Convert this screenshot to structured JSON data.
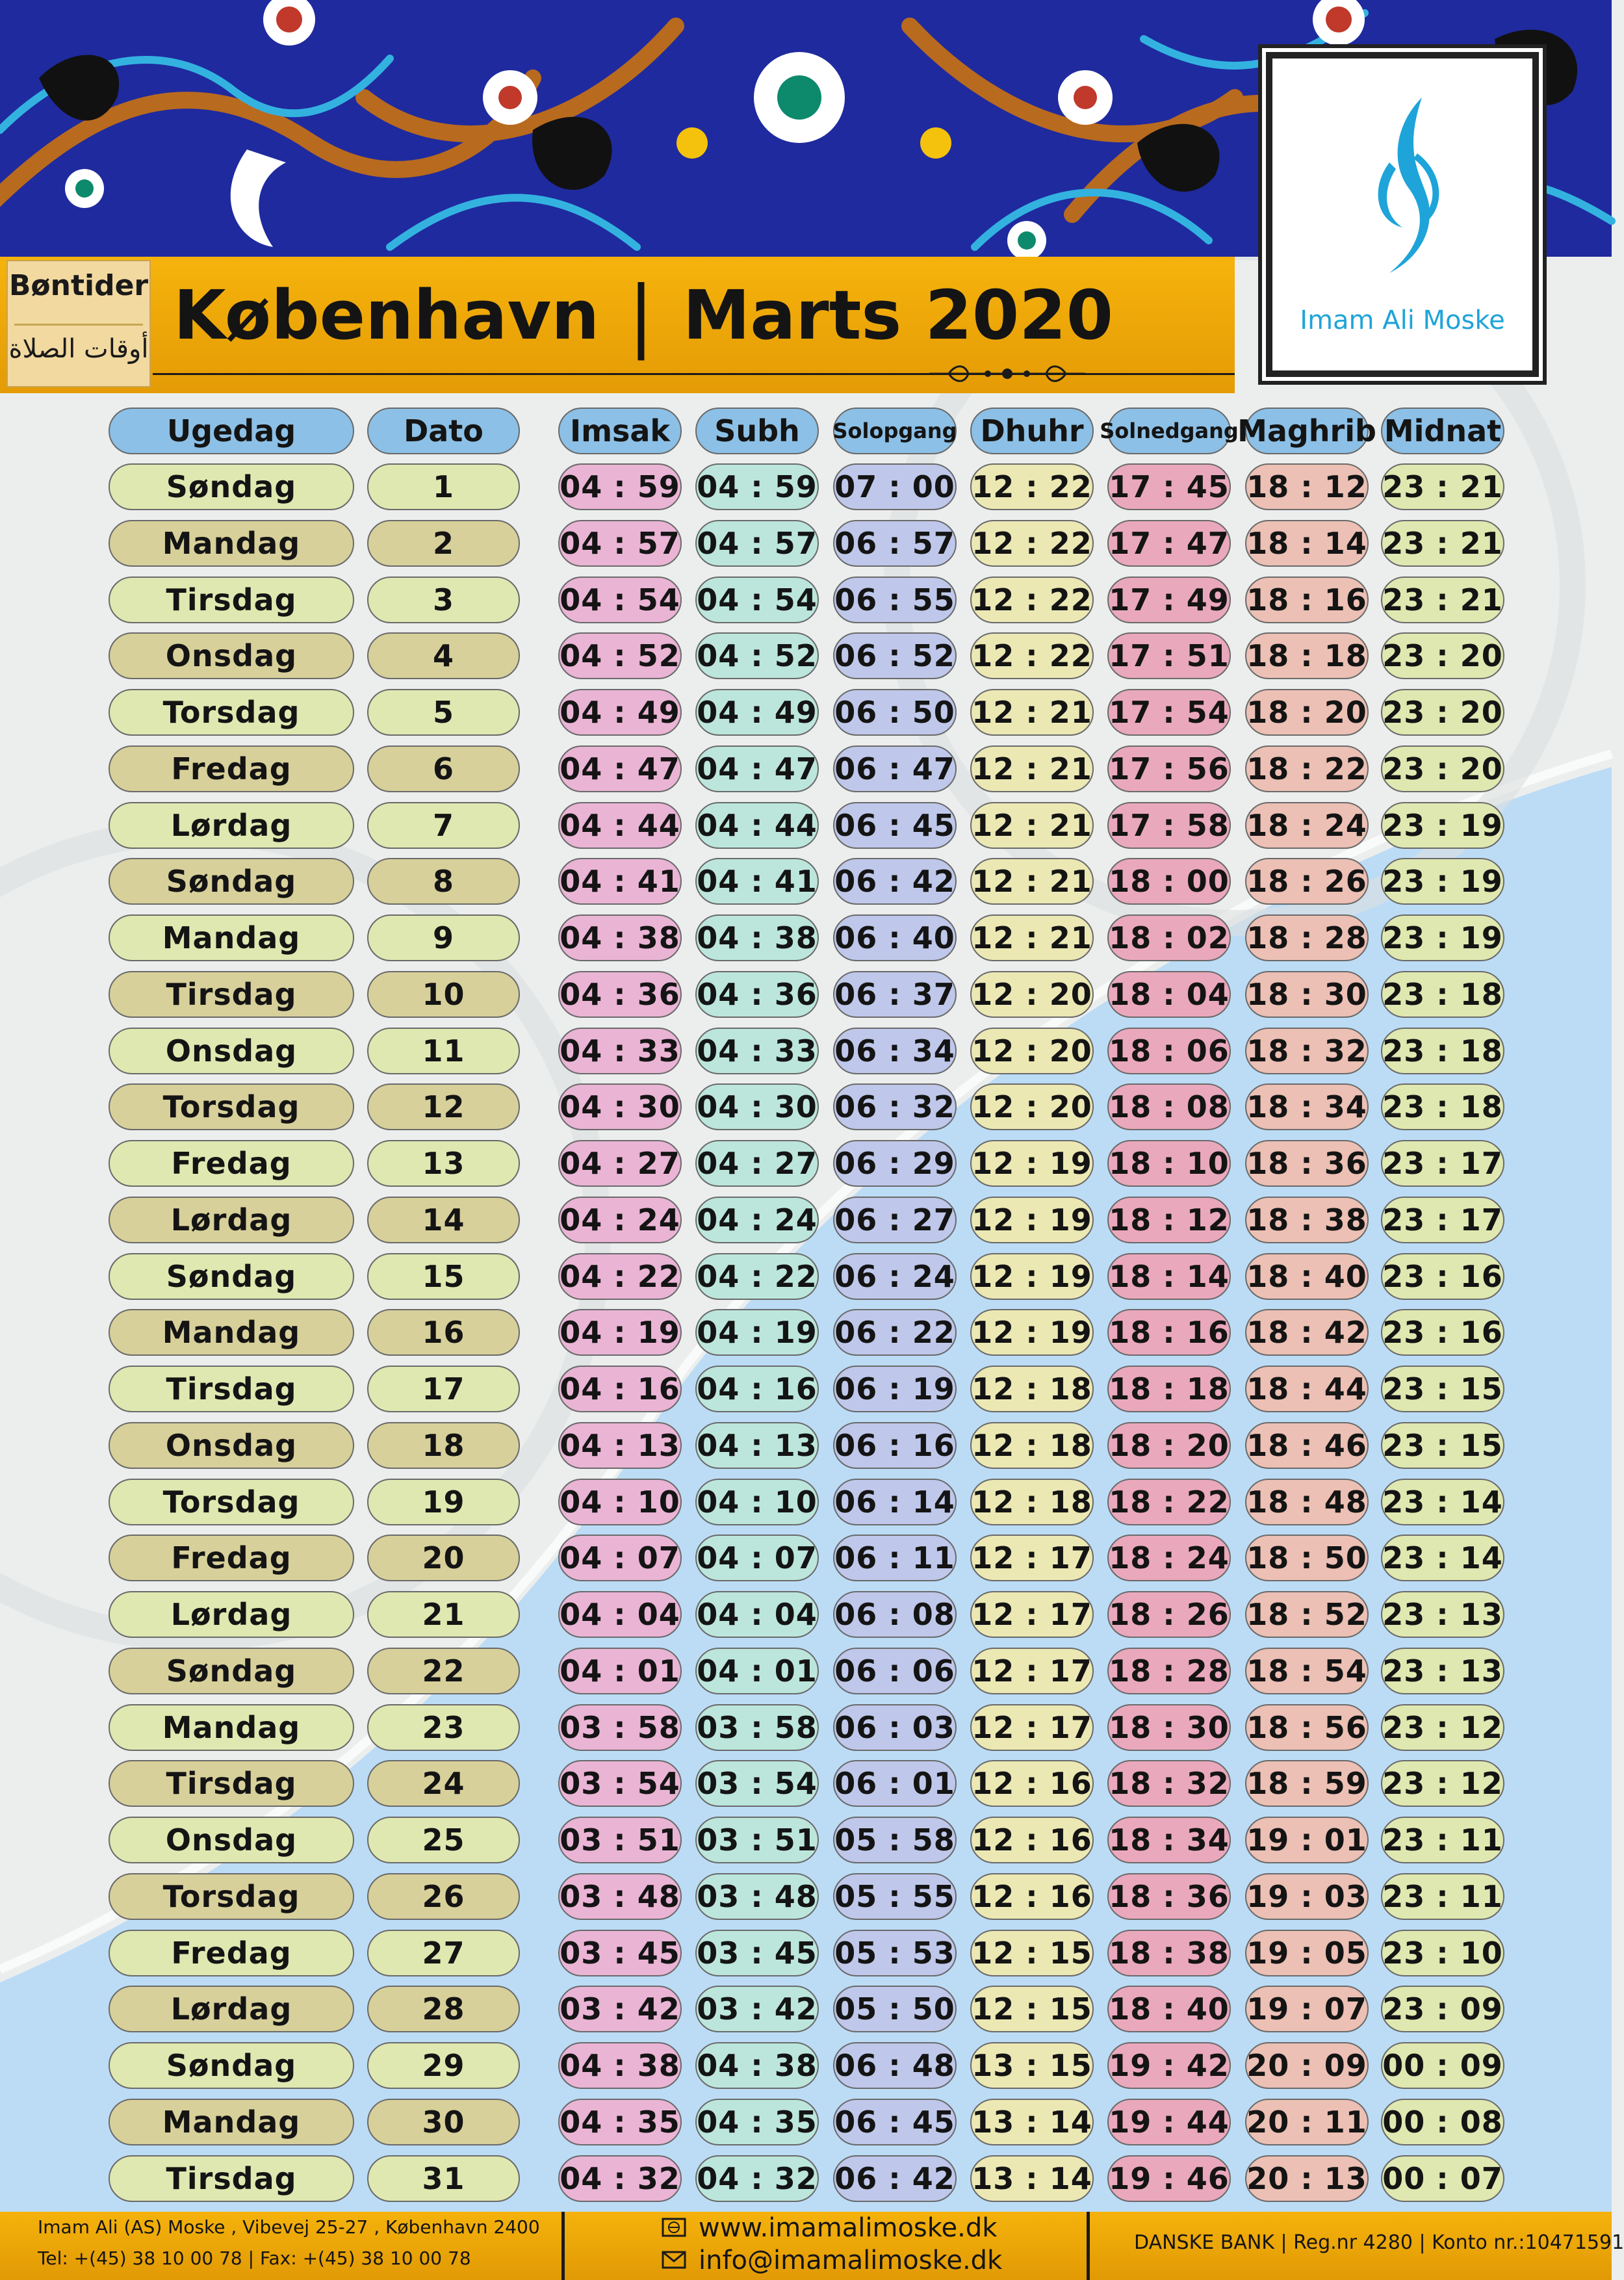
{
  "header": {
    "label_da": "Bøntider",
    "label_ar": "أوقات الصلاة",
    "city": "København",
    "separator": "|",
    "month": "Marts 2020"
  },
  "logo": {
    "name": "Imam Ali Moske",
    "icon": "calligraphy-logo-icon",
    "color": "#1ea4d9"
  },
  "colors": {
    "title_band": "#f0aa08",
    "banner": "#1f2a9e",
    "header_pill": "#8cc0e6",
    "weekday_light": "#dfe8b0",
    "weekday_dark": "#d8d09a",
    "imsak": "#eab4d5",
    "subh": "#bce6dc",
    "solopgang": "#bfc8ea",
    "dhuhr": "#ece8b4",
    "solnedgang": "#eaa8bc",
    "maghrib": "#ecc0b4",
    "midnat": "#dfe8b0"
  },
  "columns": [
    "Ugedag",
    "Dato",
    "Imsak",
    "Subh",
    "Solopgang",
    "Dhuhr",
    "Solnedgang",
    "Maghrib",
    "Midnat"
  ],
  "rows": [
    [
      "Søndag",
      "1",
      "04 : 59",
      "04 : 59",
      "07 : 00",
      "12 : 22",
      "17 : 45",
      "18 : 12",
      "23 : 21"
    ],
    [
      "Mandag",
      "2",
      "04 : 57",
      "04 : 57",
      "06 : 57",
      "12 : 22",
      "17 : 47",
      "18 : 14",
      "23 : 21"
    ],
    [
      "Tirsdag",
      "3",
      "04 : 54",
      "04 : 54",
      "06 : 55",
      "12 : 22",
      "17 : 49",
      "18 : 16",
      "23 : 21"
    ],
    [
      "Onsdag",
      "4",
      "04 : 52",
      "04 : 52",
      "06 : 52",
      "12 : 22",
      "17 : 51",
      "18 : 18",
      "23 : 20"
    ],
    [
      "Torsdag",
      "5",
      "04 : 49",
      "04 : 49",
      "06 : 50",
      "12 : 21",
      "17 : 54",
      "18 : 20",
      "23 : 20"
    ],
    [
      "Fredag",
      "6",
      "04 : 47",
      "04 : 47",
      "06 : 47",
      "12 : 21",
      "17 : 56",
      "18 : 22",
      "23 : 20"
    ],
    [
      "Lørdag",
      "7",
      "04 : 44",
      "04 : 44",
      "06 : 45",
      "12 : 21",
      "17 : 58",
      "18 : 24",
      "23 : 19"
    ],
    [
      "Søndag",
      "8",
      "04 : 41",
      "04 : 41",
      "06 : 42",
      "12 : 21",
      "18 : 00",
      "18 : 26",
      "23 : 19"
    ],
    [
      "Mandag",
      "9",
      "04 : 38",
      "04 : 38",
      "06 : 40",
      "12 : 21",
      "18 : 02",
      "18 : 28",
      "23 : 19"
    ],
    [
      "Tirsdag",
      "10",
      "04 : 36",
      "04 : 36",
      "06 : 37",
      "12 : 20",
      "18 : 04",
      "18 : 30",
      "23 : 18"
    ],
    [
      "Onsdag",
      "11",
      "04 : 33",
      "04 : 33",
      "06 : 34",
      "12 : 20",
      "18 : 06",
      "18 : 32",
      "23 : 18"
    ],
    [
      "Torsdag",
      "12",
      "04 : 30",
      "04 : 30",
      "06 : 32",
      "12 : 20",
      "18 : 08",
      "18 : 34",
      "23 : 18"
    ],
    [
      "Fredag",
      "13",
      "04 : 27",
      "04 : 27",
      "06 : 29",
      "12 : 19",
      "18 : 10",
      "18 : 36",
      "23 : 17"
    ],
    [
      "Lørdag",
      "14",
      "04 : 24",
      "04 : 24",
      "06 : 27",
      "12 : 19",
      "18 : 12",
      "18 : 38",
      "23 : 17"
    ],
    [
      "Søndag",
      "15",
      "04 : 22",
      "04 : 22",
      "06 : 24",
      "12 : 19",
      "18 : 14",
      "18 : 40",
      "23 : 16"
    ],
    [
      "Mandag",
      "16",
      "04 : 19",
      "04 : 19",
      "06 : 22",
      "12 : 19",
      "18 : 16",
      "18 : 42",
      "23 : 16"
    ],
    [
      "Tirsdag",
      "17",
      "04 : 16",
      "04 : 16",
      "06 : 19",
      "12 : 18",
      "18 : 18",
      "18 : 44",
      "23 : 15"
    ],
    [
      "Onsdag",
      "18",
      "04 : 13",
      "04 : 13",
      "06 : 16",
      "12 : 18",
      "18 : 20",
      "18 : 46",
      "23 : 15"
    ],
    [
      "Torsdag",
      "19",
      "04 : 10",
      "04 : 10",
      "06 : 14",
      "12 : 18",
      "18 : 22",
      "18 : 48",
      "23 : 14"
    ],
    [
      "Fredag",
      "20",
      "04 : 07",
      "04 : 07",
      "06 : 11",
      "12 : 17",
      "18 : 24",
      "18 : 50",
      "23 : 14"
    ],
    [
      "Lørdag",
      "21",
      "04 : 04",
      "04 : 04",
      "06 : 08",
      "12 : 17",
      "18 : 26",
      "18 : 52",
      "23 : 13"
    ],
    [
      "Søndag",
      "22",
      "04 : 01",
      "04 : 01",
      "06 : 06",
      "12 : 17",
      "18 : 28",
      "18 : 54",
      "23 : 13"
    ],
    [
      "Mandag",
      "23",
      "03 : 58",
      "03 : 58",
      "06 : 03",
      "12 : 17",
      "18 : 30",
      "18 : 56",
      "23 : 12"
    ],
    [
      "Tirsdag",
      "24",
      "03 : 54",
      "03 : 54",
      "06 : 01",
      "12 : 16",
      "18 : 32",
      "18 : 59",
      "23 : 12"
    ],
    [
      "Onsdag",
      "25",
      "03 : 51",
      "03 : 51",
      "05 : 58",
      "12 : 16",
      "18 : 34",
      "19 : 01",
      "23 : 11"
    ],
    [
      "Torsdag",
      "26",
      "03 : 48",
      "03 : 48",
      "05 : 55",
      "12 : 16",
      "18 : 36",
      "19 : 03",
      "23 : 11"
    ],
    [
      "Fredag",
      "27",
      "03 : 45",
      "03 : 45",
      "05 : 53",
      "12 : 15",
      "18 : 38",
      "19 : 05",
      "23 : 10"
    ],
    [
      "Lørdag",
      "28",
      "03 : 42",
      "03 : 42",
      "05 : 50",
      "12 : 15",
      "18 : 40",
      "19 : 07",
      "23 : 09"
    ],
    [
      "Søndag",
      "29",
      "04 : 38",
      "04 : 38",
      "06 : 48",
      "13 : 15",
      "19 : 42",
      "20 : 09",
      "00 : 09"
    ],
    [
      "Mandag",
      "30",
      "04 : 35",
      "04 : 35",
      "06 : 45",
      "13 : 14",
      "19 : 44",
      "20 : 11",
      "00 : 08"
    ],
    [
      "Tirsdag",
      "31",
      "04 : 32",
      "04 : 32",
      "06 : 42",
      "13 : 14",
      "19 : 46",
      "20 : 13",
      "00 : 07"
    ]
  ],
  "footer": {
    "address": "Imam Ali (AS) Moske , Vibevej 25-27 , København 2400",
    "phone": "Tel: +(45) 38 10 00 78  |  Fax: +(45)  38 10 00 78",
    "website": "www.imamalimoske.dk",
    "email": "info@imamalimoske.dk",
    "bank": "DANSKE BANK | Reg.nr 4280 | Konto nr.:10471591",
    "icons": [
      "globe-icon",
      "envelope-icon"
    ]
  }
}
